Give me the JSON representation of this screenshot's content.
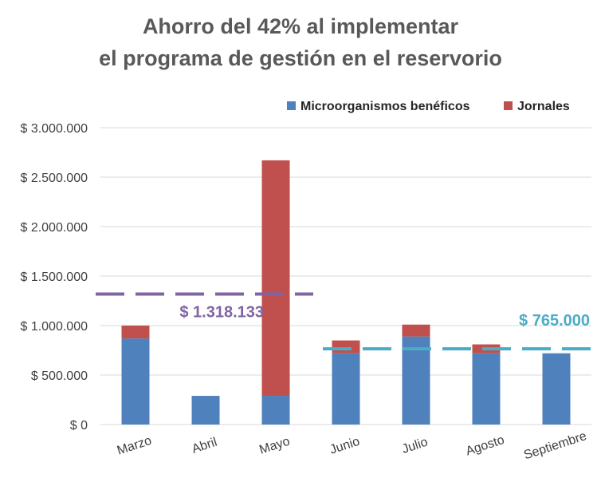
{
  "chart_data": {
    "type": "bar",
    "stacked": true,
    "title": [
      "Ahorro del 42% al implementar",
      "el programa de gestión en el reservorio"
    ],
    "categories": [
      "Marzo",
      "Abril",
      "Mayo",
      "Junio",
      "Julio",
      "Agosto",
      "Septiembre"
    ],
    "series": [
      {
        "name": "Microorganismos benéficos",
        "color": "#4f81bd",
        "values": [
          870000,
          290000,
          290000,
          720000,
          890000,
          720000,
          720000
        ]
      },
      {
        "name": "Jornales",
        "color": "#c0504d",
        "values": [
          130000,
          0,
          2380000,
          130000,
          120000,
          90000,
          0
        ]
      }
    ],
    "ylim": [
      0,
      3000000
    ],
    "yticks": [
      0,
      500000,
      1000000,
      1500000,
      2000000,
      2500000,
      3000000
    ],
    "ytick_labels": [
      "$ 0",
      "$ 500.000",
      "$ 1.000.000",
      "$ 1.500.000",
      "$ 2.000.000",
      "$ 2.500.000",
      "$ 3.000.000"
    ],
    "xlabel": "",
    "ylabel": "",
    "grid": true,
    "legend": "top-right",
    "reference_lines": [
      {
        "label": "$ 1.318.133",
        "value": 1318133,
        "color": "#8064a2",
        "from_category": "Marzo",
        "to_category": "Mayo"
      },
      {
        "label": "$ 765.000",
        "value": 765000,
        "color": "#4bacc6",
        "from_category": "Junio",
        "to_category": "Septiembre"
      }
    ]
  }
}
